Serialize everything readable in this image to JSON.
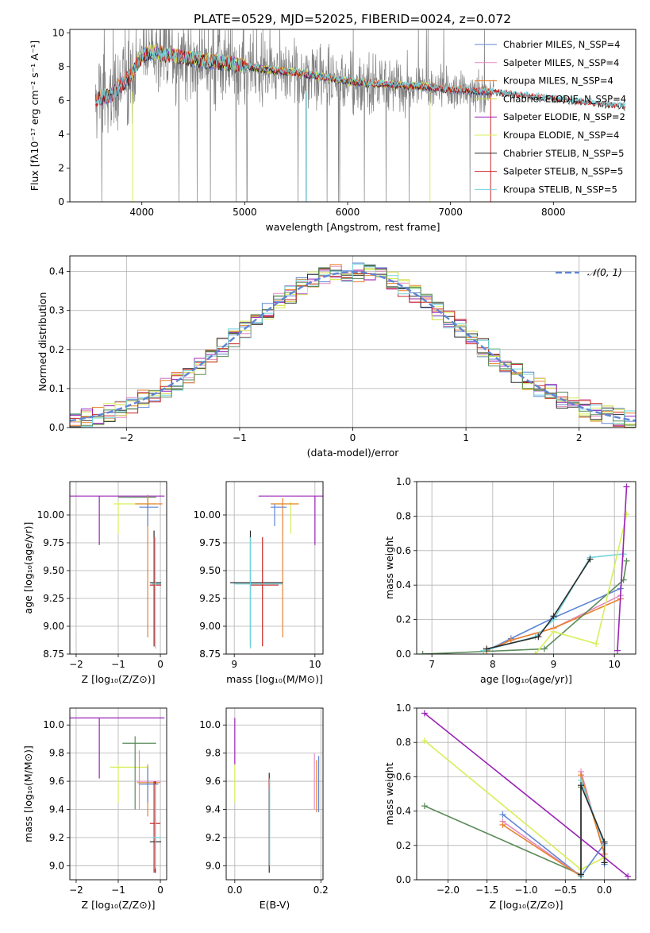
{
  "figure_title": "PLATE=0529, MJD=52025, FIBERID=0024, z=0.072",
  "colors": {
    "chabrier_miles": "#5f86d4",
    "salpeter_miles": "#e38cc0",
    "kroupa_miles": "#e8822e",
    "chabrier_elodie": "#cfd83a",
    "salpeter_elodie": "#9a23b7",
    "kroupa_elodie": "#d8ef5a",
    "chabrier_stelib": "#2b2b2b",
    "salpeter_stelib": "#c92424",
    "kroupa_stelib": "#73d3dc",
    "stelib_green": "#5a8a5a",
    "data_gray": "#808080",
    "normal_curve": "#5f86d4"
  },
  "chart_data": [
    {
      "id": "spectrum",
      "type": "line",
      "xlabel": "wavelength [Angstrom, rest frame]",
      "ylabel": "Flux [fλ10⁻¹⁷ erg cm⁻² s⁻¹ A⁻¹]",
      "xlim": [
        3300,
        8800
      ],
      "ylim": [
        0,
        10.2
      ],
      "xticks": [
        "4000",
        "5000",
        "6000",
        "7000",
        "8000"
      ],
      "yticks": [
        "0",
        "2",
        "4",
        "6",
        "8",
        "10"
      ],
      "legend_position": "top-right",
      "legend": [
        "Chabrier MILES, N_SSP=4",
        "Salpeter MILES, N_SSP=4",
        "Kroupa MILES, N_SSP=4",
        "Chabrier ELODIE, N_SSP=4",
        "Salpeter ELODIE, N_SSP=2",
        "Kroupa ELODIE, N_SSP=4",
        "Chabrier STELIB, N_SSP=5",
        "Salpeter STELIB, N_SSP=5",
        "Kroupa STELIB, N_SSP=5"
      ],
      "model_trend": {
        "x": [
          3550,
          3700,
          3900,
          4000,
          4100,
          4300,
          4600,
          4900,
          5200,
          5500,
          5800,
          6100,
          6400,
          6700,
          7000,
          7300,
          7500,
          7800,
          8100,
          8400,
          8700
        ],
        "y": [
          6.0,
          6.3,
          7.5,
          8.6,
          8.8,
          8.6,
          8.3,
          8.1,
          7.8,
          7.6,
          7.3,
          7.0,
          6.9,
          6.8,
          6.6,
          6.5,
          6.4,
          6.2,
          6.0,
          5.8,
          5.6
        ]
      }
    },
    {
      "id": "residuals",
      "type": "line",
      "xlabel": "(data-model)/error",
      "ylabel": "Normed distribution",
      "xlim": [
        -2.5,
        2.5
      ],
      "ylim": [
        0,
        0.44
      ],
      "xticks": [
        "−2",
        "−1",
        "0",
        "1",
        "2"
      ],
      "yticks": [
        "0.0",
        "0.1",
        "0.2",
        "0.3",
        "0.4"
      ],
      "legend_position": "top-right",
      "legend": [
        "𝒩(0, 1)"
      ],
      "bin_width": 0.1
    },
    {
      "id": "age_vs_Z",
      "type": "scatter",
      "xlabel": "Z [log₁₀(Z/Z⊙)]",
      "ylabel": "age  [log₁₀(age/yr)]",
      "xlim": [
        -2.15,
        0.15
      ],
      "ylim": [
        8.75,
        10.3
      ],
      "xticks": [
        "−2",
        "−1",
        "0"
      ],
      "yticks": [
        "8.75",
        "9.00",
        "9.25",
        "9.50",
        "9.75",
        "10.00"
      ]
    },
    {
      "id": "age_vs_mass",
      "type": "scatter",
      "xlabel": "mass [log₁₀(M/M⊙)]",
      "ylabel": "",
      "xlim": [
        8.9,
        10.1
      ],
      "ylim": [
        8.75,
        10.3
      ],
      "xticks": [
        "9",
        "10"
      ],
      "yticks": [
        "8.75",
        "9.00",
        "9.25",
        "9.50",
        "9.75",
        "10.00"
      ]
    },
    {
      "id": "weight_vs_age",
      "type": "line",
      "xlabel": "age  [log₁₀(age/yr)]",
      "ylabel": "mass weight",
      "xlim": [
        6.75,
        10.35
      ],
      "ylim": [
        0,
        1
      ],
      "xticks": [
        "7",
        "8",
        "9",
        "10"
      ],
      "yticks": [
        "0.0",
        "0.2",
        "0.4",
        "0.6",
        "0.8",
        "1.0"
      ],
      "series": [
        {
          "color": "chabrier_miles",
          "x": [
            7.9,
            8.3,
            9.0,
            10.1
          ],
          "y": [
            0.02,
            0.09,
            0.21,
            0.38
          ]
        },
        {
          "color": "salpeter_miles",
          "x": [
            7.9,
            8.3,
            9.0,
            10.1
          ],
          "y": [
            0.02,
            0.08,
            0.15,
            0.34
          ]
        },
        {
          "color": "kroupa_miles",
          "x": [
            7.9,
            8.3,
            9.0,
            10.1
          ],
          "y": [
            0.02,
            0.08,
            0.15,
            0.32
          ]
        },
        {
          "color": "stelib_green",
          "x": [
            6.85,
            8.85,
            10.15,
            10.2
          ],
          "y": [
            0.0,
            0.03,
            0.43,
            0.54
          ]
        },
        {
          "color": "kroupa_stelib",
          "x": [
            7.85,
            8.7,
            9.0,
            9.6,
            10.15
          ],
          "y": [
            0.02,
            0.1,
            0.2,
            0.56,
            0.58
          ]
        },
        {
          "color": "chabrier_stelib",
          "x": [
            7.9,
            8.75,
            9.0,
            9.6
          ],
          "y": [
            0.03,
            0.1,
            0.22,
            0.55
          ]
        },
        {
          "color": "kroupa_elodie",
          "x": [
            8.7,
            9.0,
            9.7,
            10.2
          ],
          "y": [
            0.0,
            0.13,
            0.06,
            0.81
          ]
        },
        {
          "color": "salpeter_elodie",
          "x": [
            10.05,
            10.2
          ],
          "y": [
            0.02,
            0.97
          ]
        }
      ]
    },
    {
      "id": "mass_vs_Z",
      "type": "scatter",
      "xlabel": "Z [log₁₀(Z/Z⊙)]",
      "ylabel": "mass [log₁₀(M/M⊙)]",
      "xlim": [
        -2.15,
        0.15
      ],
      "ylim": [
        8.9,
        10.12
      ],
      "xticks": [
        "−2",
        "−1",
        "0"
      ],
      "yticks": [
        "9.0",
        "9.2",
        "9.4",
        "9.6",
        "9.8",
        "10.0"
      ]
    },
    {
      "id": "mass_vs_ebv",
      "type": "scatter",
      "xlabel": "E(B-V)",
      "ylabel": "",
      "xlim": [
        -0.02,
        0.205
      ],
      "ylim": [
        8.9,
        10.12
      ],
      "xticks": [
        "0.0",
        "0.2"
      ],
      "yticks": [
        "9.0",
        "9.2",
        "9.4",
        "9.6",
        "9.8",
        "10.0"
      ]
    },
    {
      "id": "weight_vs_Z",
      "type": "line",
      "xlabel": "Z [log₁₀(Z/Z⊙)]",
      "ylabel": "mass weight",
      "xlim": [
        -2.4,
        0.4
      ],
      "ylim": [
        0,
        1
      ],
      "xticks": [
        "−2.0",
        "−1.5",
        "−1.0",
        "−0.5",
        "0.0"
      ],
      "yticks": [
        "0.0",
        "0.2",
        "0.4",
        "0.6",
        "0.8",
        "1.0"
      ],
      "series": [
        {
          "color": "salpeter_elodie",
          "x": [
            -2.3,
            0.3
          ],
          "y": [
            0.97,
            0.02
          ]
        },
        {
          "color": "kroupa_elodie",
          "x": [
            -2.3,
            -0.3,
            0.0
          ],
          "y": [
            0.81,
            0.06,
            0.13
          ]
        },
        {
          "color": "stelib_green",
          "x": [
            -2.3,
            -0.3,
            -0.3
          ],
          "y": [
            0.43,
            0.03,
            0.54
          ]
        },
        {
          "color": "chabrier_miles",
          "x": [
            -1.3,
            -0.3,
            0.0,
            0.0
          ],
          "y": [
            0.38,
            0.02,
            0.21,
            0.09
          ]
        },
        {
          "color": "salpeter_miles",
          "x": [
            -1.3,
            -0.3,
            -0.3,
            0.0
          ],
          "y": [
            0.34,
            0.02,
            0.63,
            0.15
          ]
        },
        {
          "color": "kroupa_miles",
          "x": [
            -1.3,
            -0.3,
            -0.3,
            0.0
          ],
          "y": [
            0.32,
            0.02,
            0.61,
            0.15
          ]
        },
        {
          "color": "kroupa_stelib",
          "x": [
            -0.3,
            -0.3,
            0.0,
            0.0
          ],
          "y": [
            0.02,
            0.58,
            0.2,
            0.1
          ]
        },
        {
          "color": "chabrier_stelib",
          "x": [
            -0.3,
            -0.3,
            0.0,
            0.0
          ],
          "y": [
            0.03,
            0.55,
            0.22,
            0.1
          ]
        }
      ]
    }
  ]
}
